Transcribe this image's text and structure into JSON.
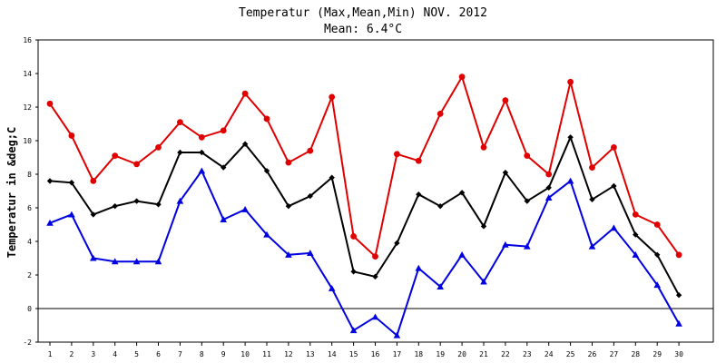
{
  "chart_data": {
    "type": "line",
    "title": "Temperatur (Max,Mean,Min) NOV. 2012",
    "subtitle": "Mean: 6.4°C",
    "xlabel": "",
    "ylabel": "Temperatur in &deg;C",
    "ylim": [
      -2,
      16
    ],
    "yticks": [
      -2,
      0,
      2,
      4,
      6,
      8,
      10,
      12,
      14,
      16
    ],
    "grid": false,
    "x": [
      1,
      2,
      3,
      4,
      5,
      6,
      7,
      8,
      9,
      10,
      11,
      12,
      13,
      14,
      15,
      16,
      17,
      18,
      19,
      20,
      21,
      22,
      23,
      24,
      25,
      26,
      27,
      28,
      29,
      30
    ],
    "series": [
      {
        "color": "#e00000",
        "marker": "circle",
        "values": [
          12.2,
          10.3,
          7.6,
          9.1,
          8.6,
          9.6,
          11.1,
          10.2,
          10.6,
          12.8,
          11.3,
          8.7,
          9.4,
          12.6,
          4.3,
          3.1,
          9.2,
          8.8,
          11.6,
          13.8,
          9.6,
          12.4,
          9.1,
          8.0,
          13.5,
          8.4,
          9.6,
          5.6,
          5.0,
          3.2
        ]
      },
      {
        "color": "#000000",
        "marker": "diamond",
        "values": [
          7.6,
          7.5,
          5.6,
          6.1,
          6.4,
          6.2,
          9.3,
          9.3,
          8.4,
          9.8,
          8.2,
          6.1,
          6.7,
          7.8,
          2.2,
          1.9,
          3.9,
          6.8,
          6.1,
          6.9,
          4.9,
          8.1,
          6.4,
          7.2,
          10.2,
          6.5,
          7.3,
          4.4,
          3.2,
          0.8
        ]
      },
      {
        "color": "#0000e0",
        "marker": "triangle",
        "values": [
          5.1,
          5.6,
          3.0,
          2.8,
          2.8,
          2.8,
          6.4,
          8.2,
          5.3,
          5.9,
          4.4,
          3.2,
          3.3,
          1.2,
          -1.3,
          -0.5,
          -1.6,
          2.4,
          1.3,
          3.2,
          1.6,
          3.8,
          3.7,
          6.6,
          7.6,
          3.7,
          4.8,
          3.2,
          1.4,
          -0.9
        ]
      }
    ]
  }
}
